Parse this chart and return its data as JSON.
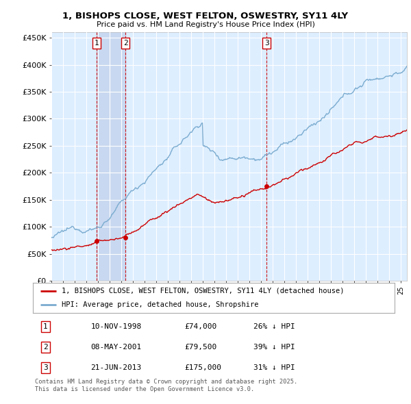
{
  "title": "1, BISHOPS CLOSE, WEST FELTON, OSWESTRY, SY11 4LY",
  "subtitle": "Price paid vs. HM Land Registry's House Price Index (HPI)",
  "ylabel_ticks": [
    "£0",
    "£50K",
    "£100K",
    "£150K",
    "£200K",
    "£250K",
    "£300K",
    "£350K",
    "£400K",
    "£450K"
  ],
  "ytick_vals": [
    0,
    50000,
    100000,
    150000,
    200000,
    250000,
    300000,
    350000,
    400000,
    450000
  ],
  "ylim": [
    0,
    460000
  ],
  "xlim_start": 1995.0,
  "xlim_end": 2025.5,
  "sale_dates": [
    1998.86,
    2001.35,
    2013.47
  ],
  "sale_prices": [
    74000,
    79500,
    175000
  ],
  "sale_labels": [
    "1",
    "2",
    "3"
  ],
  "shaded_region": [
    1998.86,
    2001.35
  ],
  "legend_line1": "1, BISHOPS CLOSE, WEST FELTON, OSWESTRY, SY11 4LY (detached house)",
  "legend_line2": "HPI: Average price, detached house, Shropshire",
  "table_rows": [
    [
      "1",
      "10-NOV-1998",
      "£74,000",
      "26% ↓ HPI"
    ],
    [
      "2",
      "08-MAY-2001",
      "£79,500",
      "39% ↓ HPI"
    ],
    [
      "3",
      "21-JUN-2013",
      "£175,000",
      "31% ↓ HPI"
    ]
  ],
  "footer": "Contains HM Land Registry data © Crown copyright and database right 2025.\nThis data is licensed under the Open Government Licence v3.0.",
  "line_color_red": "#cc0000",
  "line_color_blue": "#7aabcf",
  "background_plot": "#ddeeff",
  "grid_color": "#ffffff",
  "marker_color_red": "#cc0000",
  "vline_color": "#cc0000",
  "shade_color": "#c8d8f0"
}
